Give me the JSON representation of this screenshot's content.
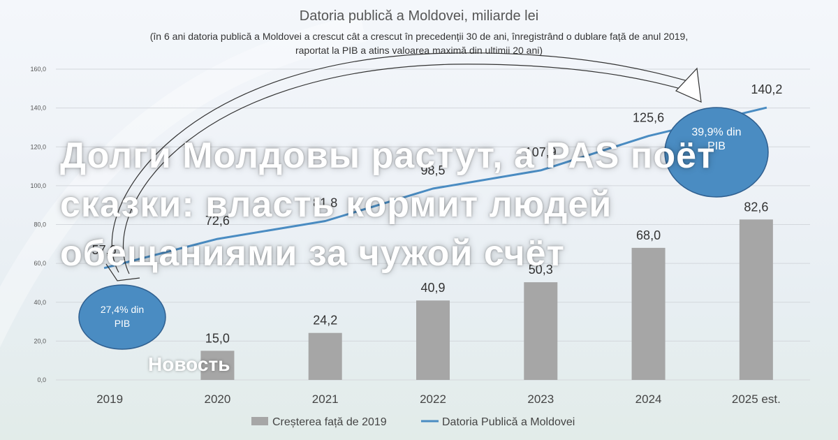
{
  "chart_data": {
    "type": "bar",
    "title": "Datoria publică a Moldovei, miliarde lei",
    "subtitle_lines": [
      "(în 6 ani datoria publică a Moldovei a crescut cât a crescut în precedenții 30 de ani, înregistrând o dublare față de anul 2019,",
      "raportat la PIB a atins valoarea maximă din ultimii 20 ani)"
    ],
    "categories": [
      "2019",
      "2020",
      "2021",
      "2022",
      "2023",
      "2024",
      "2025 est."
    ],
    "ylim": [
      0,
      160
    ],
    "yticks": [
      "0,0",
      "20,0",
      "40,0",
      "60,0",
      "80,0",
      "100,0",
      "120,0",
      "140,0",
      "160,0"
    ],
    "grid": true,
    "legend_position": "bottom",
    "series": [
      {
        "name": "Creșterea față de 2019",
        "kind": "bar",
        "color": "#a6a6a6",
        "values": [
          null,
          15.0,
          24.2,
          40.9,
          50.3,
          68.0,
          82.6
        ],
        "labels": [
          "",
          "15,0",
          "24,2",
          "40,9",
          "50,3",
          "68,0",
          "82,6"
        ]
      },
      {
        "name": "Datoria Publică a Moldovei",
        "kind": "line",
        "color": "#4a8cc2",
        "values": [
          57.6,
          72.6,
          81.8,
          98.5,
          107.9,
          125.6,
          140.2
        ],
        "labels": [
          "57,6",
          "72,6",
          "81,8",
          "98,5",
          "107,9",
          "125,6",
          "140,2"
        ]
      }
    ],
    "annotations": [
      {
        "label": "27,4% din PIB",
        "category": "2019",
        "color": "#4a8cc2"
      },
      {
        "label": "39,9% din PIB",
        "category": "2025 est.",
        "color": "#4a8cc2"
      }
    ]
  },
  "overlay": {
    "headline_lines": [
      "Долги Молдовы растут, а PAS поёт",
      "сказки: власть кормит людей",
      "обещаниями за чужой счёт"
    ],
    "badge": "Новость"
  }
}
